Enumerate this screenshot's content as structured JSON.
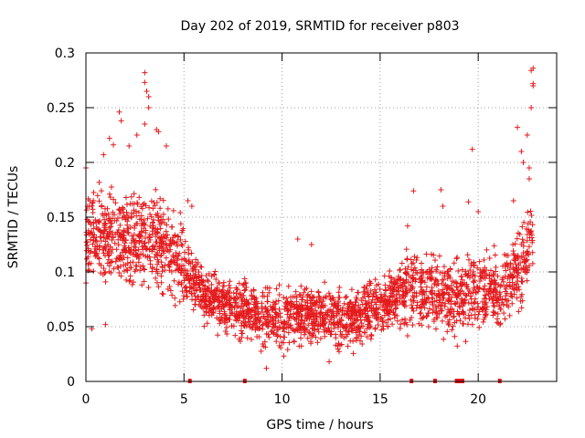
{
  "chart_data": {
    "type": "scatter",
    "title": "Day 202 of 2019, SRMTID for receiver p803",
    "xlabel": "GPS time / hours",
    "ylabel": "SRMTID / TECUs",
    "xlim": [
      0,
      24
    ],
    "ylim": [
      0,
      0.3
    ],
    "grid": true,
    "marker": "+",
    "color": "#e41a1c",
    "x_ticks": [
      0,
      5,
      10,
      15,
      20
    ],
    "x_tick_labels": [
      "0",
      "5",
      "10",
      "15",
      "20"
    ],
    "y_ticks": [
      0,
      0.05,
      0.1,
      0.15,
      0.2,
      0.25,
      0.3
    ],
    "y_tick_labels": [
      "0",
      "0.05",
      "0.1",
      "0.15",
      "0.2",
      "0.25",
      "0.3"
    ],
    "trend": [
      {
        "x": 0.0,
        "y": 0.13
      },
      {
        "x": 1.0,
        "y": 0.135
      },
      {
        "x": 2.0,
        "y": 0.135
      },
      {
        "x": 3.0,
        "y": 0.13
      },
      {
        "x": 4.0,
        "y": 0.125
      },
      {
        "x": 5.0,
        "y": 0.105
      },
      {
        "x": 6.0,
        "y": 0.08
      },
      {
        "x": 7.0,
        "y": 0.07
      },
      {
        "x": 8.0,
        "y": 0.065
      },
      {
        "x": 9.0,
        "y": 0.06
      },
      {
        "x": 10.0,
        "y": 0.055
      },
      {
        "x": 11.0,
        "y": 0.06
      },
      {
        "x": 12.0,
        "y": 0.06
      },
      {
        "x": 13.0,
        "y": 0.058
      },
      {
        "x": 14.0,
        "y": 0.06
      },
      {
        "x": 15.0,
        "y": 0.07
      },
      {
        "x": 16.0,
        "y": 0.08
      },
      {
        "x": 17.0,
        "y": 0.085
      },
      {
        "x": 18.0,
        "y": 0.08
      },
      {
        "x": 19.0,
        "y": 0.075
      },
      {
        "x": 20.0,
        "y": 0.085
      },
      {
        "x": 21.0,
        "y": 0.08
      },
      {
        "x": 22.0,
        "y": 0.1
      },
      {
        "x": 22.8,
        "y": 0.13
      }
    ],
    "outliers": [
      {
        "x": 0.0,
        "y": 0.195
      },
      {
        "x": 0.2,
        "y": 0.165
      },
      {
        "x": 0.3,
        "y": 0.048
      },
      {
        "x": 0.9,
        "y": 0.207
      },
      {
        "x": 1.0,
        "y": 0.052
      },
      {
        "x": 1.2,
        "y": 0.222
      },
      {
        "x": 1.4,
        "y": 0.216
      },
      {
        "x": 1.7,
        "y": 0.246
      },
      {
        "x": 1.8,
        "y": 0.238
      },
      {
        "x": 2.2,
        "y": 0.215
      },
      {
        "x": 2.6,
        "y": 0.225
      },
      {
        "x": 3.0,
        "y": 0.282
      },
      {
        "x": 3.0,
        "y": 0.273
      },
      {
        "x": 3.1,
        "y": 0.265
      },
      {
        "x": 3.2,
        "y": 0.26
      },
      {
        "x": 3.2,
        "y": 0.25
      },
      {
        "x": 3.0,
        "y": 0.235
      },
      {
        "x": 3.6,
        "y": 0.23
      },
      {
        "x": 3.7,
        "y": 0.228
      },
      {
        "x": 4.1,
        "y": 0.215
      },
      {
        "x": 5.2,
        "y": 0.165
      },
      {
        "x": 5.4,
        "y": 0.16
      },
      {
        "x": 10.8,
        "y": 0.13
      },
      {
        "x": 11.5,
        "y": 0.125
      },
      {
        "x": 9.2,
        "y": 0.012
      },
      {
        "x": 12.4,
        "y": 0.018
      },
      {
        "x": 16.4,
        "y": 0.142
      },
      {
        "x": 16.7,
        "y": 0.174
      },
      {
        "x": 18.1,
        "y": 0.175
      },
      {
        "x": 18.2,
        "y": 0.16
      },
      {
        "x": 19.5,
        "y": 0.164
      },
      {
        "x": 19.7,
        "y": 0.212
      },
      {
        "x": 20.0,
        "y": 0.155
      },
      {
        "x": 21.8,
        "y": 0.165
      },
      {
        "x": 22.0,
        "y": 0.232
      },
      {
        "x": 22.2,
        "y": 0.21
      },
      {
        "x": 22.3,
        "y": 0.2
      },
      {
        "x": 22.5,
        "y": 0.225
      },
      {
        "x": 22.6,
        "y": 0.195
      },
      {
        "x": 22.6,
        "y": 0.185
      },
      {
        "x": 22.7,
        "y": 0.25
      },
      {
        "x": 22.8,
        "y": 0.27
      },
      {
        "x": 22.8,
        "y": 0.272
      },
      {
        "x": 22.7,
        "y": 0.284
      },
      {
        "x": 22.8,
        "y": 0.286
      }
    ],
    "zero_markers": [
      5.3,
      8.1,
      16.6,
      17.8,
      18.9,
      19.0,
      19.1,
      19.2,
      21.1
    ]
  }
}
